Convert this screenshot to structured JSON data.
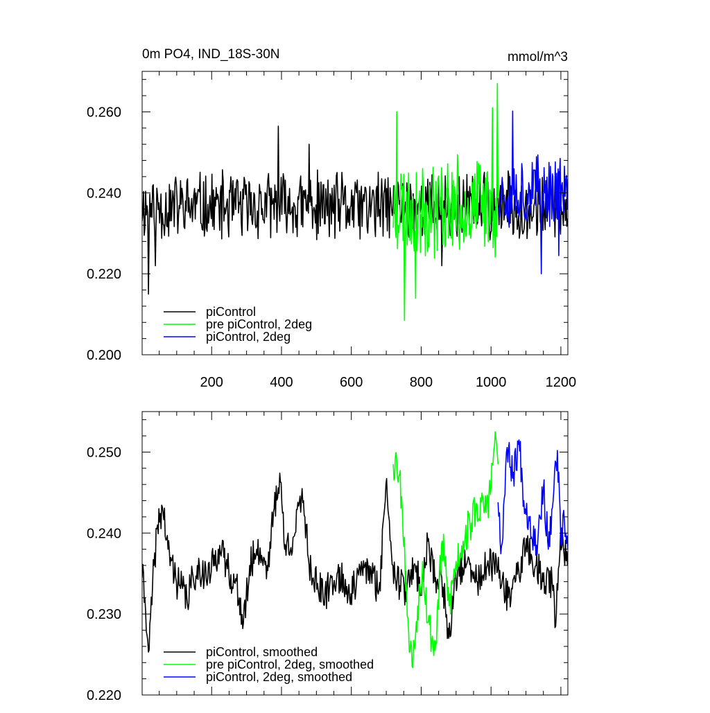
{
  "chart_data": [
    {
      "type": "line",
      "title": "0m PO4, IND_18S-30N",
      "units": "mmol/m^3",
      "xlabel": "",
      "ylabel": "",
      "xlim": [
        1,
        1220
      ],
      "ylim": [
        0.2,
        0.27
      ],
      "x_ticks": [
        200,
        400,
        600,
        800,
        1000,
        1200
      ],
      "y_ticks": [
        0.2,
        0.22,
        0.24,
        0.26
      ],
      "x_tick_labels": [
        "200",
        "400",
        "600",
        "800",
        "1000",
        "1200"
      ],
      "y_tick_labels": [
        "0.200",
        "0.220",
        "0.240",
        "0.260"
      ],
      "legend_position": "bottom-left",
      "series": [
        {
          "name": "piControl",
          "color": "#000000",
          "x_range": [
            1,
            1220
          ],
          "mean": 0.2365,
          "amplitude": 0.0095,
          "seed": 11,
          "outliers": [
            [
              20,
              0.215
            ],
            [
              392,
              0.2565
            ],
            [
              40,
              0.222
            ],
            [
              480,
              0.252
            ],
            [
              860,
              0.222
            ]
          ]
        },
        {
          "name": "pre piControl, 2deg",
          "color": "#00ff00",
          "x_range": [
            720,
            1020
          ],
          "mean": 0.2365,
          "amplitude": 0.0135,
          "seed": 23,
          "outliers": [
            [
              730,
              0.26
            ],
            [
              752,
              0.2085
            ],
            [
              785,
              0.214
            ],
            [
              1005,
              0.261
            ],
            [
              1018,
              0.267
            ]
          ]
        },
        {
          "name": "piControl, 2deg",
          "color": "#0000ff",
          "x_range": [
            1020,
            1220
          ],
          "mean": 0.2405,
          "amplitude": 0.01,
          "seed": 37,
          "outliers": [
            [
              1062,
              0.2602
            ],
            [
              1145,
              0.22
            ],
            [
              1195,
              0.2245
            ]
          ]
        }
      ]
    },
    {
      "type": "line",
      "title": "",
      "xlabel": "",
      "ylabel": "",
      "xlim": [
        1,
        1220
      ],
      "ylim": [
        0.22,
        0.255
      ],
      "x_ticks": [
        200,
        400,
        600,
        800,
        1000,
        1200
      ],
      "y_ticks": [
        0.22,
        0.23,
        0.24,
        0.25
      ],
      "y_tick_labels": [
        "0.220",
        "0.230",
        "0.240",
        "0.250"
      ],
      "legend_position": "bottom-left",
      "series": [
        {
          "name": "piControl, smoothed",
          "color": "#000000",
          "x_range": [
            1,
            1220
          ],
          "anchors": [
            [
              1,
              0.2345
            ],
            [
              10,
              0.232
            ],
            [
              20,
              0.2253
            ],
            [
              35,
              0.236
            ],
            [
              45,
              0.241
            ],
            [
              60,
              0.2432
            ],
            [
              75,
              0.238
            ],
            [
              100,
              0.234
            ],
            [
              130,
              0.232
            ],
            [
              160,
              0.236
            ],
            [
              190,
              0.2345
            ],
            [
              220,
              0.238
            ],
            [
              250,
              0.2355
            ],
            [
              280,
              0.232
            ],
            [
              290,
              0.2282
            ],
            [
              310,
              0.236
            ],
            [
              330,
              0.238
            ],
            [
              360,
              0.236
            ],
            [
              380,
              0.243
            ],
            [
              395,
              0.2474
            ],
            [
              410,
              0.238
            ],
            [
              440,
              0.24
            ],
            [
              460,
              0.2455
            ],
            [
              480,
              0.236
            ],
            [
              520,
              0.232
            ],
            [
              560,
              0.235
            ],
            [
              600,
              0.2325
            ],
            [
              640,
              0.236
            ],
            [
              680,
              0.233
            ],
            [
              700,
              0.246
            ],
            [
              720,
              0.236
            ],
            [
              740,
              0.2335
            ],
            [
              760,
              0.233
            ],
            [
              780,
              0.236
            ],
            [
              800,
              0.233
            ],
            [
              820,
              0.239
            ],
            [
              840,
              0.234
            ],
            [
              860,
              0.2345
            ],
            [
              880,
              0.227
            ],
            [
              900,
              0.235
            ],
            [
              930,
              0.236
            ],
            [
              960,
              0.234
            ],
            [
              990,
              0.236
            ],
            [
              1020,
              0.2355
            ],
            [
              1050,
              0.232
            ],
            [
              1080,
              0.2355
            ],
            [
              1100,
              0.238
            ],
            [
              1130,
              0.236
            ],
            [
              1150,
              0.234
            ],
            [
              1175,
              0.234
            ],
            [
              1185,
              0.2285
            ],
            [
              1200,
              0.24
            ],
            [
              1220,
              0.236
            ]
          ],
          "noise": 0.0022,
          "seed": 41
        },
        {
          "name": "pre piControl, 2deg, smoothed",
          "color": "#00ff00",
          "x_range": [
            720,
            1020
          ],
          "anchors": [
            [
              720,
              0.2485
            ],
            [
              730,
              0.249
            ],
            [
              745,
              0.2445
            ],
            [
              755,
              0.235
            ],
            [
              765,
              0.228
            ],
            [
              775,
              0.2235
            ],
            [
              790,
              0.231
            ],
            [
              805,
              0.2365
            ],
            [
              820,
              0.229
            ],
            [
              840,
              0.2255
            ],
            [
              860,
              0.239
            ],
            [
              880,
              0.231
            ],
            [
              900,
              0.2365
            ],
            [
              920,
              0.239
            ],
            [
              940,
              0.241
            ],
            [
              960,
              0.2435
            ],
            [
              980,
              0.2425
            ],
            [
              1000,
              0.2455
            ],
            [
              1012,
              0.2525
            ],
            [
              1020,
              0.2485
            ]
          ],
          "noise": 0.0025,
          "seed": 53
        },
        {
          "name": "piControl, 2deg, smoothed",
          "color": "#0000ff",
          "x_range": [
            1020,
            1220
          ],
          "anchors": [
            [
              1020,
              0.2438
            ],
            [
              1030,
              0.2384
            ],
            [
              1045,
              0.25
            ],
            [
              1065,
              0.2475
            ],
            [
              1080,
              0.2515
            ],
            [
              1095,
              0.244
            ],
            [
              1110,
              0.2415
            ],
            [
              1130,
              0.2385
            ],
            [
              1150,
              0.2455
            ],
            [
              1165,
              0.238
            ],
            [
              1180,
              0.2455
            ],
            [
              1190,
              0.2502
            ],
            [
              1200,
              0.2385
            ],
            [
              1210,
              0.2415
            ],
            [
              1220,
              0.238
            ]
          ],
          "noise": 0.0022,
          "seed": 67
        }
      ]
    }
  ]
}
